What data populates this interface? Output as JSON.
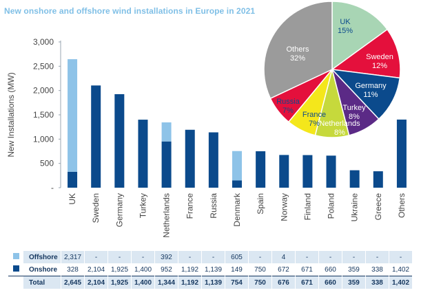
{
  "chart_data": [
    {
      "type": "bar",
      "stacked": true,
      "title": "New onshore and offshore wind installations in Europe in 2021",
      "ylabel": "New Installations (MW)",
      "xlabel": "",
      "ylim": [
        0,
        3000
      ],
      "yticks": [
        0,
        500,
        1000,
        1500,
        2000,
        2500,
        3000
      ],
      "ytick_labels": [
        "-",
        "500",
        "1,000",
        "1,500",
        "2,000",
        "2,500",
        "3,000"
      ],
      "grid": false,
      "categories": [
        "UK",
        "Sweden",
        "Germany",
        "Turkey",
        "Netherlands",
        "France",
        "Russia",
        "Denmark",
        "Spain",
        "Norway",
        "Finland",
        "Poland",
        "Ukraine",
        "Greece",
        "Others"
      ],
      "series": [
        {
          "name": "Onshore",
          "color": "#0b4a8c",
          "values": [
            328,
            2104,
            1925,
            1400,
            952,
            1192,
            1139,
            149,
            750,
            672,
            671,
            660,
            359,
            338,
            1402
          ]
        },
        {
          "name": "Offshore",
          "color": "#8ec3e8",
          "values": [
            2317,
            0,
            0,
            0,
            392,
            0,
            0,
            605,
            0,
            4,
            0,
            0,
            0,
            0,
            0
          ]
        }
      ]
    },
    {
      "type": "pie",
      "slices": [
        {
          "label": "UK",
          "pct": "15%",
          "value": 15,
          "color": "#a8d5b4",
          "text_color": "#0b4a8c"
        },
        {
          "label": "Sweden",
          "pct": "12%",
          "value": 12,
          "color": "#e4103c",
          "text_color": "#ffffff"
        },
        {
          "label": "Germany",
          "pct": "11%",
          "value": 11,
          "color": "#0b4a8c",
          "text_color": "#ffffff"
        },
        {
          "label": "Turkey",
          "pct": "8%",
          "value": 8,
          "color": "#5b2a86",
          "text_color": "#ffffff"
        },
        {
          "label": "Netherlands",
          "pct": "8%",
          "value": 8,
          "color": "#c6d93c",
          "text_color": "#ffffff"
        },
        {
          "label": "France",
          "pct": "7%",
          "value": 7,
          "color": "#f4e71b",
          "text_color": "#0b4a8c"
        },
        {
          "label": "Russia",
          "pct": "7%",
          "value": 7,
          "color": "#e4103c",
          "text_color": "#0b4a8c"
        },
        {
          "label": "Others",
          "pct": "32%",
          "value": 32,
          "color": "#9b9b9b",
          "text_color": "#ffffff"
        }
      ]
    }
  ],
  "table": {
    "rows": [
      {
        "label": "Offshore",
        "swatch": "#8ec3e8",
        "cells": [
          "2,317",
          "-",
          "-",
          "-",
          "392",
          "-",
          "-",
          "605",
          "-",
          "4",
          "-",
          "-",
          "-",
          "-",
          "-"
        ]
      },
      {
        "label": "Onshore",
        "swatch": "#0b4a8c",
        "cells": [
          "328",
          "2,104",
          "1,925",
          "1,400",
          "952",
          "1,192",
          "1,139",
          "149",
          "750",
          "672",
          "671",
          "660",
          "359",
          "338",
          "1,402"
        ]
      },
      {
        "label": "Total",
        "swatch": "",
        "cells": [
          "2,645",
          "2,104",
          "1,925",
          "1,400",
          "1,344",
          "1,192",
          "1,139",
          "754",
          "750",
          "676",
          "671",
          "660",
          "359",
          "338",
          "1,402"
        ]
      }
    ]
  }
}
